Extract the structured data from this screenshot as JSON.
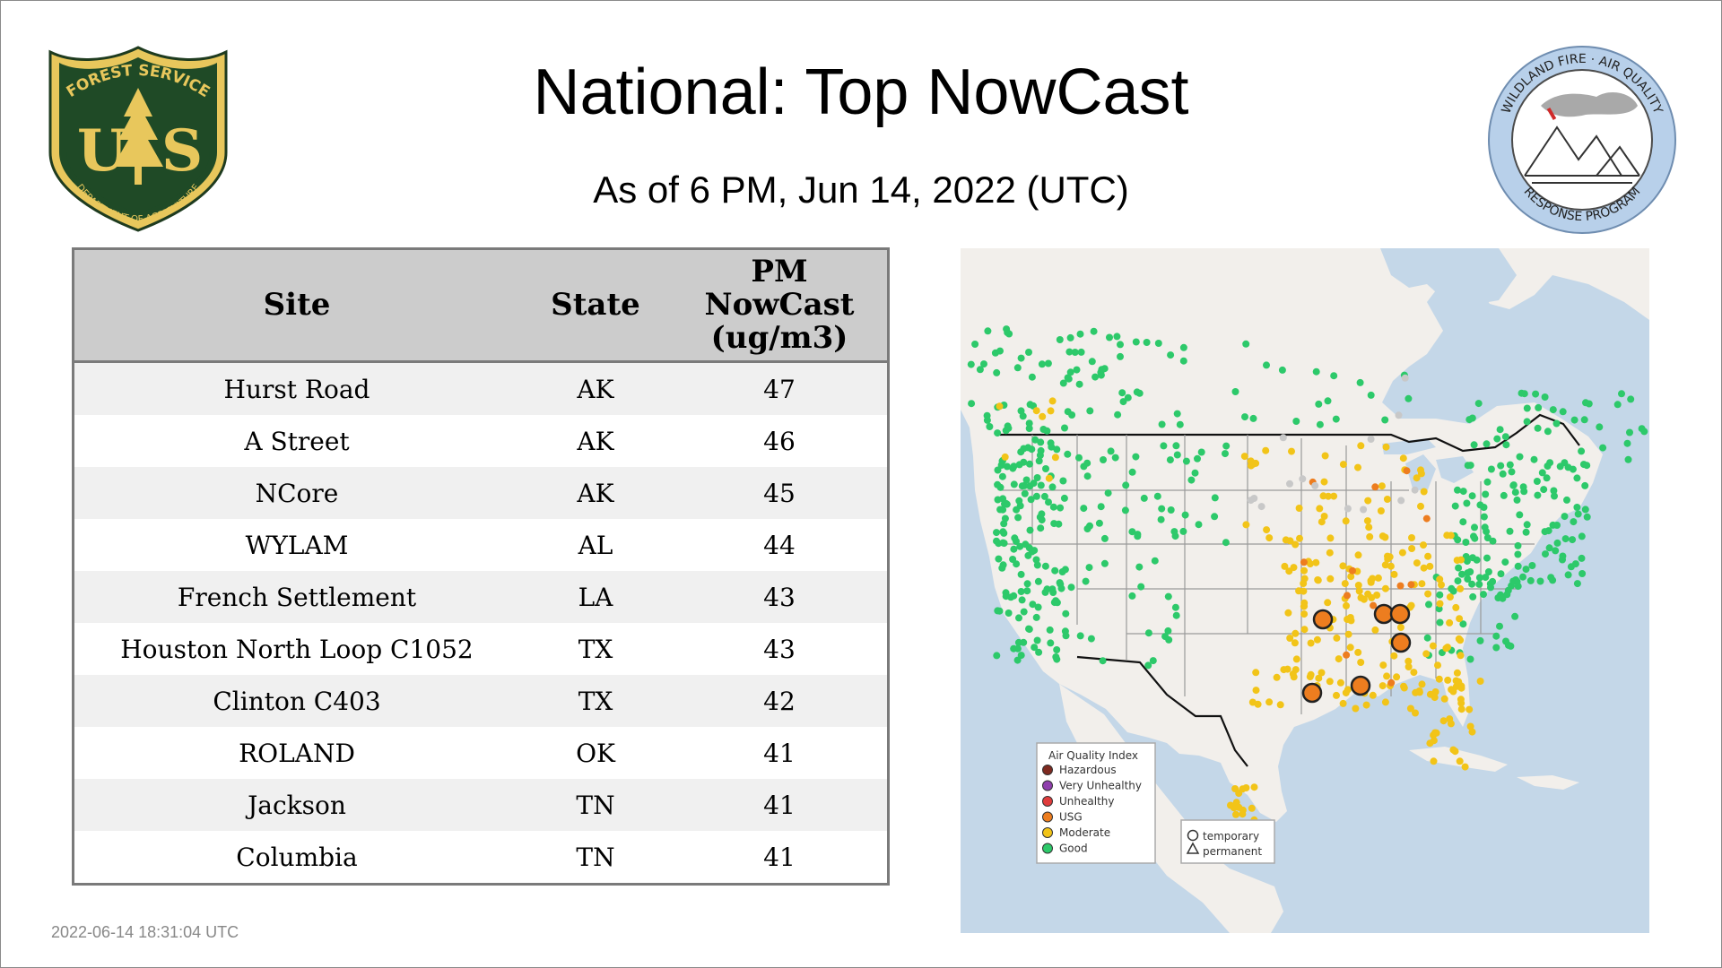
{
  "title": "National: Top NowCast",
  "subtitle": "As of  6 PM, Jun 14, 2022 (UTC)",
  "timestamp": "2022-06-14 18:31:04 UTC",
  "logos": {
    "forest_service": {
      "arc_text": "FOREST SERVICE",
      "letters": "US",
      "bottom_text": "DEPARTMENT OF AGRICULTURE"
    },
    "wildland": {
      "top_text": "WILDLAND FIRE · AIR QUALITY",
      "bottom_text": "RESPONSE PROGRAM"
    }
  },
  "table": {
    "headers": {
      "site": "Site",
      "state": "State",
      "value_line1": "PM",
      "value_line2": "NowCast",
      "value_line3": "(ug/m3)"
    },
    "rows": [
      {
        "site": "Hurst Road",
        "state": "AK",
        "value": "47"
      },
      {
        "site": "A Street",
        "state": "AK",
        "value": "46"
      },
      {
        "site": "NCore",
        "state": "AK",
        "value": "45"
      },
      {
        "site": "WYLAM",
        "state": "AL",
        "value": "44"
      },
      {
        "site": "French Settlement",
        "state": "LA",
        "value": "43"
      },
      {
        "site": "Houston North Loop C1052",
        "state": "TX",
        "value": "43"
      },
      {
        "site": "Clinton C403",
        "state": "TX",
        "value": "42"
      },
      {
        "site": "ROLAND",
        "state": "OK",
        "value": "41"
      },
      {
        "site": "Jackson",
        "state": "TN",
        "value": "41"
      },
      {
        "site": "Columbia",
        "state": "TN",
        "value": "41"
      }
    ]
  },
  "map": {
    "legend_title": "Air Quality Index",
    "categories": [
      {
        "label": "Hazardous",
        "color": "#7e2a20"
      },
      {
        "label": "Very Unhealthy",
        "color": "#8f3fad"
      },
      {
        "label": "Unhealthy",
        "color": "#e03c3c"
      },
      {
        "label": "USG",
        "color": "#ed7d1f"
      },
      {
        "label": "Moderate",
        "color": "#f2c418"
      },
      {
        "label": "Good",
        "color": "#2dc96a"
      }
    ],
    "shape_legend": {
      "circle": "temporary",
      "triangle": "permanent"
    },
    "colors": {
      "ocean": "#c4d7e8",
      "land": "#f2efeb",
      "state_lines": "#9a9a9a",
      "border": "#111111",
      "no_data": "#c8c8c8"
    }
  }
}
